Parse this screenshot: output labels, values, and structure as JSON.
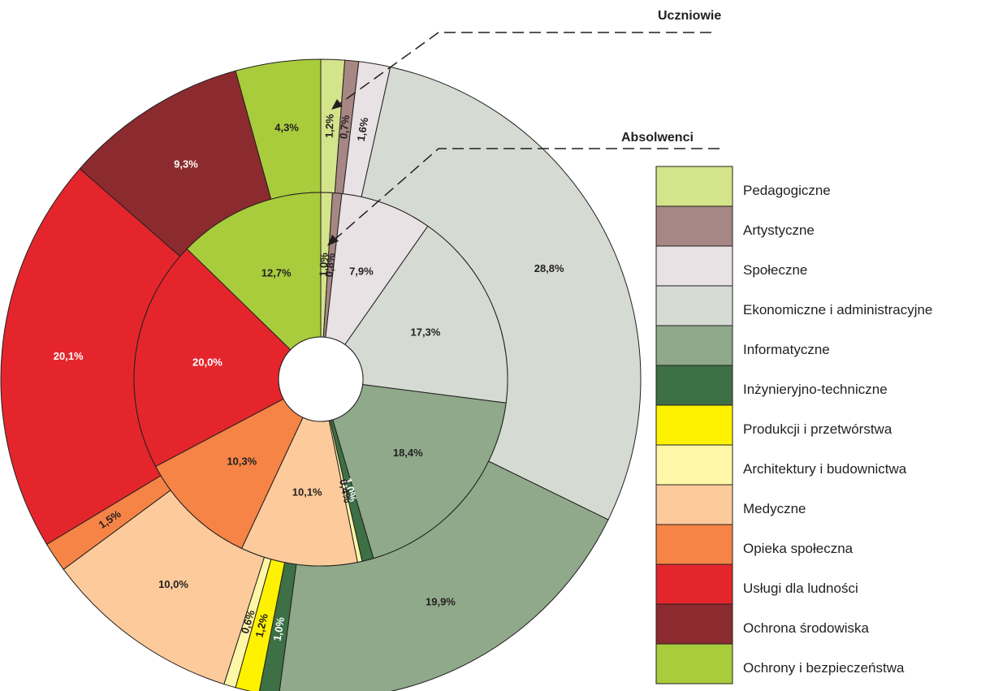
{
  "chart_data": {
    "type": "donut",
    "categories": [
      "Pedagogiczne",
      "Artystyczne",
      "Społeczne",
      "Ekonomiczne i administracyjne",
      "Informatyczne",
      "Inżynieryjno-techniczne",
      "Produkcji i przetwórstwa",
      "Architektury i budownictwa",
      "Medyczne",
      "Opieka społeczna",
      "Usługi dla ludności",
      "Ochrona środowiska",
      "Ochrony i bezpieczeństwa"
    ],
    "colors": [
      "#d4e48a",
      "#a68783",
      "#e8e2e4",
      "#d5dbd3",
      "#8fa98a",
      "#3d7045",
      "#fff200",
      "#fff7a8",
      "#fdcb9b",
      "#f58446",
      "#e4262c",
      "#8c2b2f",
      "#a8cc3c"
    ],
    "series": [
      {
        "name": "Uczniowie",
        "values": [
          1.2,
          0.7,
          1.6,
          28.8,
          19.9,
          1.0,
          1.2,
          0.6,
          10.0,
          1.5,
          20.1,
          9.3,
          4.3
        ],
        "value_labels": [
          "1,2%",
          "0,7%",
          "1,6%",
          "28,8%",
          "19,9%",
          "1,0%",
          "1,2%",
          "0,6%",
          "10,0%",
          "1,5%",
          "20,1%",
          "9,3%",
          "4,3%"
        ]
      },
      {
        "name": "Absolwenci",
        "values": [
          1.0,
          0.8,
          7.9,
          17.3,
          18.4,
          1.0,
          0,
          0.4,
          10.1,
          10.3,
          20.0,
          0,
          12.7
        ],
        "value_labels": [
          "1,0%",
          "0,8%",
          "7,9%",
          "17,3%",
          "18,4%",
          "1,0%",
          null,
          "0,4%",
          "10,1%",
          "10,3%",
          "20,0%",
          null,
          "12,7%"
        ]
      }
    ]
  }
}
